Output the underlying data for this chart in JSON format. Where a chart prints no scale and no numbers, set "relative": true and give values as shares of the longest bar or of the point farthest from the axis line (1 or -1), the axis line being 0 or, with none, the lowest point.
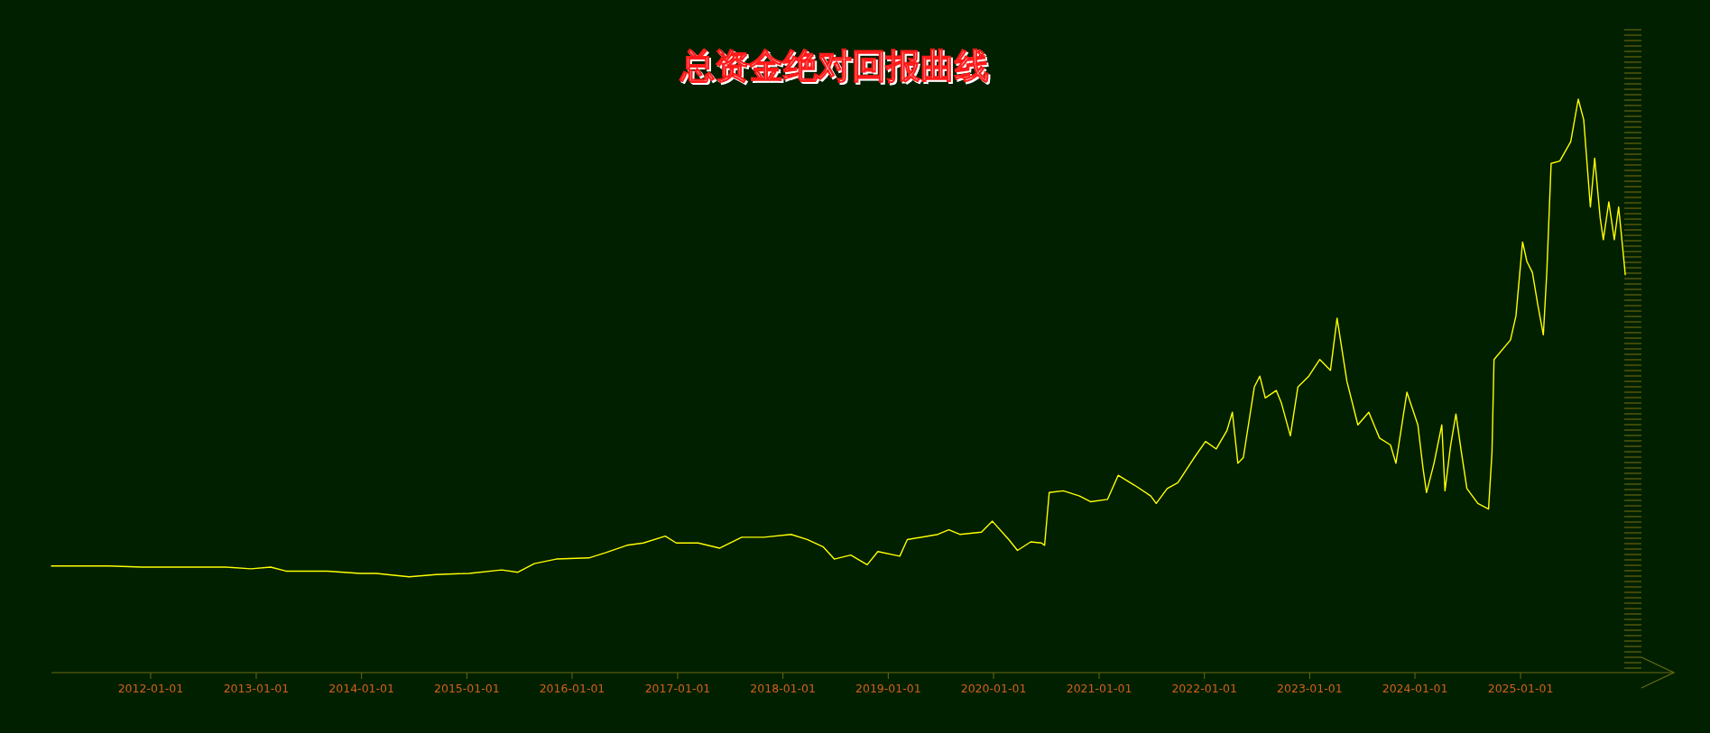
{
  "chart_data": {
    "type": "line",
    "title": "总资金绝对回报曲线",
    "relative": true,
    "xlim": [
      "2011-01-22",
      "2026-02-24"
    ],
    "xticks": [
      "2012-01-01",
      "2013-01-01",
      "2014-01-01",
      "2015-01-01",
      "2016-01-01",
      "2017-01-01",
      "2018-01-01",
      "2019-01-01",
      "2020-01-01",
      "2021-01-01",
      "2022-01-01",
      "2023-01-01",
      "2024-01-01",
      "2025-01-01"
    ],
    "x": [
      "2011-01-22",
      "2011-08-11",
      "2011-12-02",
      "2012-08-22",
      "2012-09-18",
      "2012-12-14",
      "2013-02-20",
      "2013-04-14",
      "2013-09-05",
      "2013-12-27",
      "2014-02-21",
      "2014-06-15",
      "2014-09-17",
      "2015-01-09",
      "2015-05-02",
      "2015-06-27",
      "2015-08-23",
      "2015-11-07",
      "2016-02-28",
      "2016-04-25",
      "2016-07-09",
      "2016-09-04",
      "2016-11-19",
      "2016-12-27",
      "2017-03-13",
      "2017-05-27",
      "2017-08-11",
      "2017-10-26",
      "2018-01-29",
      "2018-03-26",
      "2018-05-21",
      "2018-06-28",
      "2018-08-24",
      "2018-10-20",
      "2018-11-26",
      "2019-02-10",
      "2019-03-08",
      "2019-06-22",
      "2019-07-30",
      "2019-09-06",
      "2019-11-20",
      "2019-12-28",
      "2020-02-23",
      "2020-03-24",
      "2020-05-09",
      "2020-06-15",
      "2020-06-26",
      "2020-07-12",
      "2020-08-30",
      "2020-10-25",
      "2020-12-02",
      "2021-01-30",
      "2021-03-08",
      "2021-05-03",
      "2021-06-29",
      "2021-07-18",
      "2021-08-25",
      "2021-10-01",
      "2021-11-27",
      "2022-01-05",
      "2022-02-11",
      "2022-03-20",
      "2022-04-08",
      "2022-04-27",
      "2022-05-16",
      "2022-06-23",
      "2022-07-12",
      "2022-07-31",
      "2022-09-07",
      "2022-09-25",
      "2022-10-26",
      "2022-11-21",
      "2022-12-29",
      "2023-02-05",
      "2023-03-14",
      "2023-04-06",
      "2023-05-10",
      "2023-06-17",
      "2023-07-25",
      "2023-08-31",
      "2023-10-08",
      "2023-10-27",
      "2023-12-04",
      "2024-01-11",
      "2024-01-29",
      "2024-02-10",
      "2024-03-07",
      "2024-04-03",
      "2024-04-14",
      "2024-05-03",
      "2024-05-22",
      "2024-06-10",
      "2024-06-29",
      "2024-08-06",
      "2024-09-12",
      "2024-09-24",
      "2024-10-01",
      "2024-11-27",
      "2024-12-16",
      "2025-01-08",
      "2025-01-23",
      "2025-02-11",
      "2025-03-02",
      "2025-03-21",
      "2025-04-02",
      "2025-04-17",
      "2025-05-17",
      "2025-06-24",
      "2025-07-20",
      "2025-08-08",
      "2025-08-31",
      "2025-09-15",
      "2025-10-04",
      "2025-10-15",
      "2025-11-03",
      "2025-11-22",
      "2025-12-07",
      "2025-12-22",
      "2025-12-30"
    ],
    "series": [
      {
        "color": "#ffff00",
        "values": [
          0.186,
          0.186,
          0.184,
          0.184,
          0.184,
          0.181,
          0.184,
          0.177,
          0.177,
          0.173,
          0.173,
          0.167,
          0.171,
          0.173,
          0.179,
          0.175,
          0.19,
          0.198,
          0.2,
          0.209,
          0.222,
          0.226,
          0.238,
          0.226,
          0.226,
          0.217,
          0.236,
          0.236,
          0.241,
          0.232,
          0.219,
          0.198,
          0.205,
          0.188,
          0.211,
          0.203,
          0.232,
          0.241,
          0.249,
          0.241,
          0.245,
          0.264,
          0.232,
          0.213,
          0.228,
          0.226,
          0.222,
          0.314,
          0.317,
          0.308,
          0.298,
          0.302,
          0.344,
          0.327,
          0.308,
          0.295,
          0.321,
          0.331,
          0.375,
          0.403,
          0.39,
          0.422,
          0.454,
          0.365,
          0.375,
          0.498,
          0.517,
          0.479,
          0.492,
          0.47,
          0.413,
          0.498,
          0.517,
          0.546,
          0.527,
          0.618,
          0.508,
          0.432,
          0.454,
          0.409,
          0.397,
          0.365,
          0.489,
          0.432,
          0.356,
          0.314,
          0.365,
          0.432,
          0.317,
          0.394,
          0.451,
          0.384,
          0.321,
          0.295,
          0.285,
          0.384,
          0.546,
          0.58,
          0.622,
          0.751,
          0.717,
          0.698,
          0.641,
          0.589,
          0.698,
          0.888,
          0.892,
          0.926,
          1,
          0.964,
          0.812,
          0.897,
          0.793,
          0.755,
          0.821,
          0.755,
          0.812,
          0.736,
          0.694
        ]
      }
    ]
  }
}
